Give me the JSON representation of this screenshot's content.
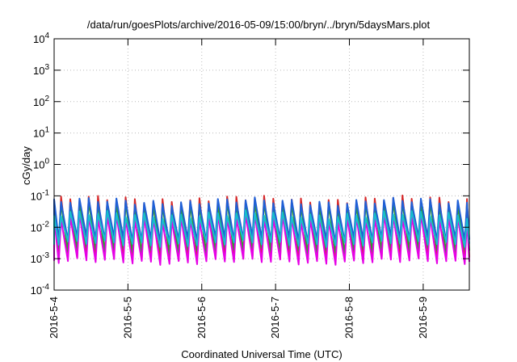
{
  "chart_data": {
    "type": "line",
    "title": "/data/run/goesPlots/archive/2016-05-09/15:00/bryn/../bryn/5daysMars.plot",
    "xlabel": "Coordinated Universal Time (UTC)",
    "ylabel": "cGy/day",
    "yscale": "log",
    "ylim": [
      0.0001,
      10000
    ],
    "xlim": [
      "2016-05-04 00:00",
      "2016-05-09 15:00"
    ],
    "grid": true,
    "y_ticks": [
      {
        "base": "10",
        "exp": "-4"
      },
      {
        "base": "10",
        "exp": "-3"
      },
      {
        "base": "10",
        "exp": "-2"
      },
      {
        "base": "10",
        "exp": "-1"
      },
      {
        "base": "10",
        "exp": "0"
      },
      {
        "base": "10",
        "exp": "1"
      },
      {
        "base": "10",
        "exp": "2"
      },
      {
        "base": "10",
        "exp": "3"
      },
      {
        "base": "10",
        "exp": "4"
      }
    ],
    "x_ticks": [
      "2016-5-4",
      "2016-5-5",
      "2016-5-6",
      "2016-5-7",
      "2016-5-8",
      "2016-5-9"
    ],
    "cycle_period_hours": 3,
    "series": [
      {
        "color": "#d62728",
        "values": {
          "peak": 0.075,
          "trough": 0.0011
        }
      },
      {
        "color": "#2ca02c",
        "values": {
          "peak": 0.05,
          "trough": 0.0018
        }
      },
      {
        "color": "#1f5fd6",
        "values": {
          "peak": 0.065,
          "trough": 0.004
        }
      },
      {
        "color": "#e600e6",
        "values": {
          "peak": 0.02,
          "trough": 0.0008
        }
      },
      {
        "color": "#17becf",
        "values": {
          "peak": 0.025,
          "trough": 0.003
        }
      }
    ]
  }
}
